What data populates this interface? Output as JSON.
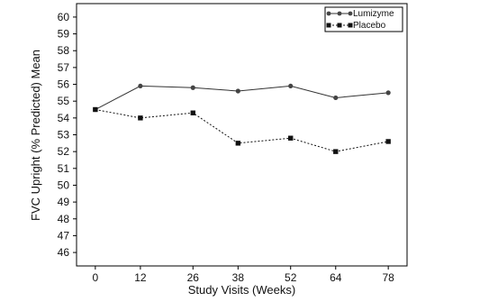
{
  "chart_data": {
    "type": "line",
    "title": "",
    "xlabel": "Study Visits (Weeks)",
    "ylabel": "FVC Upright (% Predicted) Mean",
    "x": [
      0,
      12,
      26,
      38,
      52,
      64,
      78
    ],
    "x_tick_labels": [
      "0",
      "12",
      "26",
      "38",
      "52",
      "64",
      "78"
    ],
    "xlim": [
      -5,
      83
    ],
    "y_tick_labels": [
      "46",
      "47",
      "48",
      "49",
      "50",
      "51",
      "52",
      "53",
      "54",
      "55",
      "56",
      "57",
      "58",
      "59",
      "60"
    ],
    "ylim": [
      45.2,
      60.8
    ],
    "grid": false,
    "legend_position": "top-right",
    "series": [
      {
        "name": "Lumizyme",
        "values": [
          54.5,
          55.9,
          55.8,
          55.6,
          55.9,
          55.2,
          55.5
        ],
        "color": "#333333",
        "marker": "circle",
        "line_style": "solid"
      },
      {
        "name": "Placebo",
        "values": [
          54.5,
          54.0,
          54.3,
          52.5,
          52.8,
          52.0,
          52.6
        ],
        "color": "#111111",
        "marker": "square",
        "line_style": "dotted"
      }
    ]
  }
}
